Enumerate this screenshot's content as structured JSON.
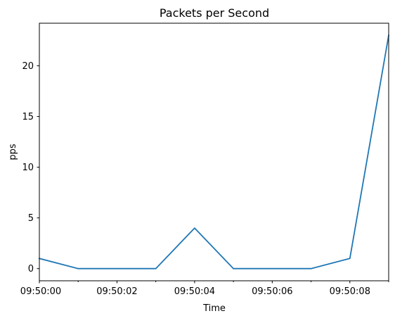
{
  "chart_data": {
    "type": "line",
    "title": "Packets per Second",
    "xlabel": "Time",
    "ylabel": "pps",
    "x": [
      "09:50:00",
      "09:50:01",
      "09:50:02",
      "09:50:03",
      "09:50:04",
      "09:50:05",
      "09:50:06",
      "09:50:07",
      "09:50:08",
      "09:50:09"
    ],
    "series": [
      {
        "values": [
          1,
          0,
          0,
          0,
          4,
          0,
          0,
          0,
          1,
          23
        ],
        "color": "#1f77b4"
      }
    ],
    "xlim": [
      "09:50:00",
      "09:50:09"
    ],
    "ylim": [
      -1.2,
      24.2
    ],
    "x_ticks": [
      "09:50:00",
      "09:50:02",
      "09:50:04",
      "09:50:06",
      "09:50:08"
    ],
    "y_ticks": [
      0,
      5,
      10,
      15,
      20
    ],
    "grid": false,
    "legend": "none"
  }
}
